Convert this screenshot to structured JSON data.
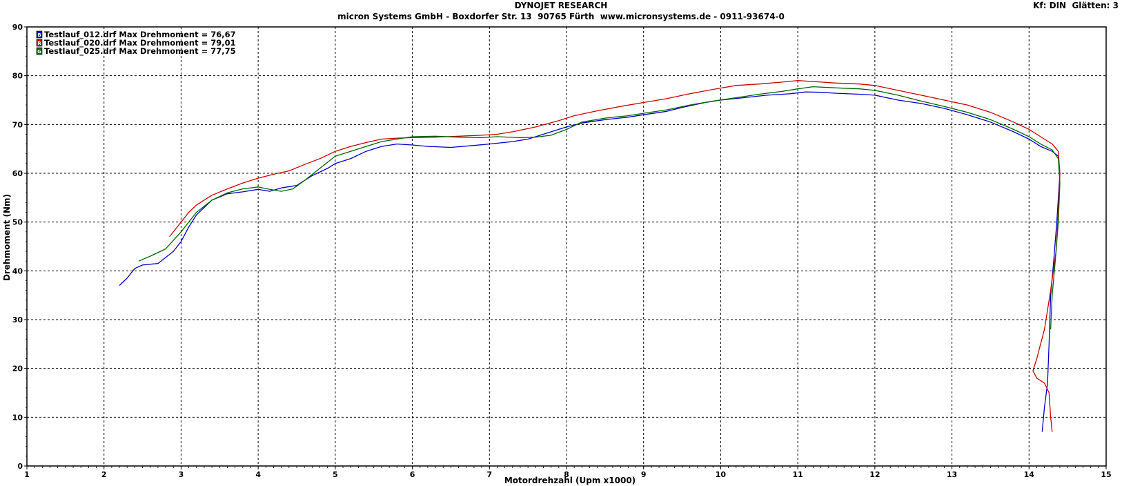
{
  "header": {
    "line1": "DYNOJET RESEARCH",
    "line2": "micron Systems GmbH - Boxdorfer Str. 13  90765 Fürth  www.micronsystems.de - 0911-93674-0",
    "corner": "Kf: DIN  Glätten: 3"
  },
  "chart_data": {
    "type": "line",
    "xlabel": "Motordrehzahl (Upm x1000)",
    "ylabel": "Drehmoment (Nm)",
    "xlim": [
      1,
      15
    ],
    "ylim": [
      0,
      90
    ],
    "xticks": [
      "1",
      "2",
      "3",
      "4",
      "5",
      "6",
      "7",
      "8",
      "9",
      "10",
      "11",
      "12",
      "13",
      "14",
      "15"
    ],
    "yticks": [
      "0",
      "10",
      "20",
      "30",
      "40",
      "50",
      "60",
      "70",
      "80",
      "90"
    ],
    "grid": true,
    "legend_position": "top-left",
    "series": [
      {
        "name": "Testlauf_012.drf Max Drehmoment = 76,67",
        "legend_mark": "B",
        "color": "#0000cc",
        "points": [
          [
            2.2,
            37
          ],
          [
            2.3,
            38.5
          ],
          [
            2.4,
            40.5
          ],
          [
            2.5,
            41.2
          ],
          [
            2.7,
            41.5
          ],
          [
            2.9,
            44
          ],
          [
            3.0,
            46
          ],
          [
            3.1,
            49
          ],
          [
            3.2,
            51.5
          ],
          [
            3.4,
            54.5
          ],
          [
            3.6,
            55.8
          ],
          [
            3.8,
            56.2
          ],
          [
            4.0,
            56.7
          ],
          [
            4.15,
            56.3
          ],
          [
            4.3,
            57
          ],
          [
            4.5,
            57.5
          ],
          [
            4.7,
            59.5
          ],
          [
            4.9,
            61
          ],
          [
            5.0,
            62
          ],
          [
            5.2,
            63
          ],
          [
            5.4,
            64.5
          ],
          [
            5.6,
            65.5
          ],
          [
            5.8,
            66
          ],
          [
            6.0,
            65.8
          ],
          [
            6.2,
            65.5
          ],
          [
            6.5,
            65.3
          ],
          [
            6.8,
            65.7
          ],
          [
            7.0,
            66
          ],
          [
            7.3,
            66.5
          ],
          [
            7.5,
            67
          ],
          [
            7.8,
            68.5
          ],
          [
            8.0,
            69.5
          ],
          [
            8.2,
            70.3
          ],
          [
            8.5,
            71
          ],
          [
            8.8,
            71.5
          ],
          [
            9.0,
            72
          ],
          [
            9.3,
            72.7
          ],
          [
            9.5,
            73.5
          ],
          [
            9.8,
            74.5
          ],
          [
            10.0,
            75
          ],
          [
            10.3,
            75.5
          ],
          [
            10.6,
            76
          ],
          [
            10.9,
            76.3
          ],
          [
            11.1,
            76.67
          ],
          [
            11.3,
            76.6
          ],
          [
            11.5,
            76.4
          ],
          [
            11.8,
            76.2
          ],
          [
            12.0,
            76
          ],
          [
            12.3,
            75
          ],
          [
            12.6,
            74.3
          ],
          [
            12.9,
            73.3
          ],
          [
            13.2,
            72
          ],
          [
            13.5,
            70.5
          ],
          [
            13.8,
            68.5
          ],
          [
            14.0,
            67
          ],
          [
            14.15,
            65.5
          ],
          [
            14.3,
            64.5
          ],
          [
            14.38,
            63.5
          ],
          [
            14.4,
            60
          ],
          [
            14.36,
            50
          ],
          [
            14.32,
            42
          ],
          [
            14.28,
            35
          ],
          [
            14.26,
            25
          ],
          [
            14.24,
            17
          ],
          [
            14.2,
            12
          ],
          [
            14.17,
            7
          ]
        ]
      },
      {
        "name": "Testlauf_020.drf Max Drehmoment = 79,01",
        "legend_mark": "R",
        "color": "#cc0000",
        "points": [
          [
            2.85,
            47
          ],
          [
            3.0,
            50
          ],
          [
            3.1,
            52
          ],
          [
            3.2,
            53.5
          ],
          [
            3.4,
            55.5
          ],
          [
            3.6,
            56.8
          ],
          [
            3.8,
            58
          ],
          [
            4.0,
            59
          ],
          [
            4.2,
            59.8
          ],
          [
            4.4,
            60.5
          ],
          [
            4.6,
            61.8
          ],
          [
            4.8,
            63
          ],
          [
            5.0,
            64.5
          ],
          [
            5.2,
            65.5
          ],
          [
            5.4,
            66.3
          ],
          [
            5.6,
            67
          ],
          [
            5.8,
            67.2
          ],
          [
            6.0,
            67.3
          ],
          [
            6.3,
            67.4
          ],
          [
            6.6,
            67.6
          ],
          [
            6.9,
            67.8
          ],
          [
            7.1,
            68
          ],
          [
            7.3,
            68.5
          ],
          [
            7.6,
            69.5
          ],
          [
            7.9,
            70.8
          ],
          [
            8.1,
            71.8
          ],
          [
            8.4,
            72.8
          ],
          [
            8.7,
            73.7
          ],
          [
            9.0,
            74.5
          ],
          [
            9.3,
            75.3
          ],
          [
            9.6,
            76.3
          ],
          [
            9.9,
            77.2
          ],
          [
            10.2,
            78
          ],
          [
            10.5,
            78.3
          ],
          [
            10.8,
            78.7
          ],
          [
            11.0,
            79.01
          ],
          [
            11.2,
            78.8
          ],
          [
            11.5,
            78.5
          ],
          [
            11.8,
            78.3
          ],
          [
            12.0,
            78
          ],
          [
            12.3,
            77
          ],
          [
            12.6,
            76
          ],
          [
            12.9,
            75
          ],
          [
            13.2,
            74
          ],
          [
            13.5,
            72.5
          ],
          [
            13.8,
            70.5
          ],
          [
            14.0,
            69
          ],
          [
            14.15,
            67.5
          ],
          [
            14.3,
            66
          ],
          [
            14.38,
            64.5
          ],
          [
            14.4,
            60
          ],
          [
            14.38,
            52
          ],
          [
            14.35,
            44
          ],
          [
            14.28,
            36
          ],
          [
            14.2,
            28
          ],
          [
            14.1,
            22
          ],
          [
            14.05,
            19.5
          ],
          [
            14.1,
            18
          ],
          [
            14.2,
            17
          ],
          [
            14.26,
            15
          ],
          [
            14.28,
            10
          ],
          [
            14.3,
            7
          ]
        ]
      },
      {
        "name": "Testlauf_025.drf Max Drehmoment = 77,75",
        "legend_mark": "G",
        "color": "#006600",
        "points": [
          [
            2.45,
            42
          ],
          [
            2.6,
            43
          ],
          [
            2.8,
            44.5
          ],
          [
            3.0,
            48
          ],
          [
            3.2,
            52
          ],
          [
            3.4,
            54.5
          ],
          [
            3.6,
            56
          ],
          [
            3.8,
            56.8
          ],
          [
            4.0,
            57.2
          ],
          [
            4.15,
            56.7
          ],
          [
            4.3,
            56.3
          ],
          [
            4.45,
            56.8
          ],
          [
            4.6,
            58.5
          ],
          [
            4.8,
            61
          ],
          [
            5.0,
            63.5
          ],
          [
            5.2,
            64.5
          ],
          [
            5.4,
            65.5
          ],
          [
            5.6,
            66.5
          ],
          [
            5.8,
            67
          ],
          [
            6.0,
            67.5
          ],
          [
            6.3,
            67.6
          ],
          [
            6.6,
            67.4
          ],
          [
            6.9,
            67.3
          ],
          [
            7.1,
            67.5
          ],
          [
            7.4,
            67.3
          ],
          [
            7.6,
            67.4
          ],
          [
            7.8,
            67.8
          ],
          [
            8.0,
            69
          ],
          [
            8.2,
            70.5
          ],
          [
            8.5,
            71.3
          ],
          [
            8.8,
            71.8
          ],
          [
            9.0,
            72.3
          ],
          [
            9.3,
            73
          ],
          [
            9.6,
            74
          ],
          [
            9.9,
            74.8
          ],
          [
            10.2,
            75.5
          ],
          [
            10.5,
            76.2
          ],
          [
            10.8,
            76.8
          ],
          [
            11.0,
            77.3
          ],
          [
            11.2,
            77.75
          ],
          [
            11.5,
            77.5
          ],
          [
            11.8,
            77.3
          ],
          [
            12.0,
            77
          ],
          [
            12.3,
            76
          ],
          [
            12.6,
            74.8
          ],
          [
            12.9,
            73.7
          ],
          [
            13.2,
            72.5
          ],
          [
            13.5,
            71
          ],
          [
            13.8,
            69
          ],
          [
            14.0,
            67.5
          ],
          [
            14.15,
            66
          ],
          [
            14.3,
            64.8
          ],
          [
            14.38,
            63
          ],
          [
            14.4,
            58
          ],
          [
            14.38,
            50
          ],
          [
            14.34,
            42
          ],
          [
            14.3,
            35
          ],
          [
            14.28,
            28
          ]
        ]
      }
    ]
  }
}
